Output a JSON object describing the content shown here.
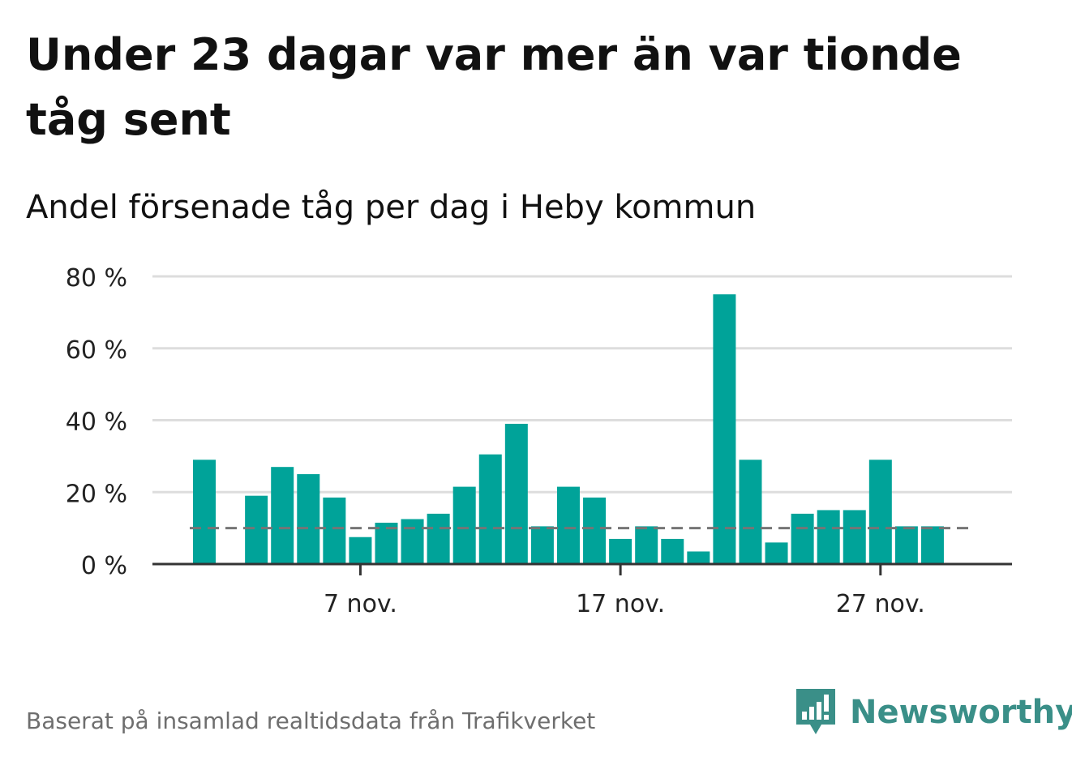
{
  "header": {
    "title": "Under 23 dagar var mer än var tionde tåg sent",
    "subtitle": "Andel försenade tåg per dag i Heby kommun"
  },
  "footer": {
    "source": "Baserat på insamlad realtidsdata från Trafikverket",
    "brand": "Newsworthy"
  },
  "colors": {
    "bar": "#00a399",
    "grid": "#dddddd",
    "axis": "#333333",
    "reference": "#757575",
    "brand": "#3a8f88"
  },
  "chart_data": {
    "type": "bar",
    "title": "Under 23 dagar var mer än var tionde tåg sent",
    "subtitle": "Andel försenade tåg per dag i Heby kommun",
    "xlabel": "",
    "ylabel": "",
    "x_ticks": [
      {
        "day": 7,
        "label": "7 nov."
      },
      {
        "day": 17,
        "label": "17 nov."
      },
      {
        "day": 27,
        "label": "27 nov."
      }
    ],
    "ylim": [
      0,
      80
    ],
    "y_ticks": [
      0,
      20,
      40,
      60,
      80
    ],
    "y_tick_suffix": " %",
    "grid": true,
    "reference_line": 10,
    "days": [
      1,
      2,
      3,
      4,
      5,
      6,
      7,
      8,
      9,
      10,
      11,
      12,
      13,
      14,
      15,
      16,
      17,
      18,
      19,
      20,
      21,
      22,
      23,
      24,
      25,
      26,
      27,
      28,
      29
    ],
    "values": [
      29,
      null,
      19,
      27,
      25,
      18.5,
      7.5,
      11.5,
      12.5,
      14,
      21.5,
      30.5,
      39,
      10.5,
      21.5,
      18.5,
      7,
      10.5,
      7,
      3.5,
      75,
      29,
      6,
      14,
      15,
      15,
      29,
      10.5,
      10.5
    ]
  }
}
